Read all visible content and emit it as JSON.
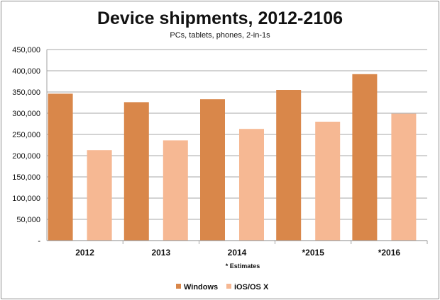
{
  "chart_data": {
    "type": "bar",
    "title": "Device shipments, 2012-2106",
    "subtitle": "PCs, tablets, phones, 2-in-1s",
    "categories": [
      "2012",
      "2013",
      "2014",
      "*2015",
      "*2016"
    ],
    "series": [
      {
        "name": "Windows",
        "values": [
          346000,
          326000,
          333000,
          355000,
          392000
        ],
        "color": "#d9874a"
      },
      {
        "name": "iOS/OS X",
        "values": [
          213000,
          236000,
          263000,
          280000,
          299000
        ],
        "color": "#f6b893"
      }
    ],
    "ylim": [
      0,
      450000
    ],
    "yticks": [
      0,
      50000,
      100000,
      150000,
      200000,
      250000,
      300000,
      350000,
      400000,
      450000
    ],
    "ytick_labels": [
      "-",
      "50,000",
      "100,000",
      "150,000",
      "200,000",
      "250,000",
      "300,000",
      "350,000",
      "400,000",
      "450,000"
    ],
    "note": "* Estimates",
    "grid": true,
    "legend_position": "bottom"
  }
}
